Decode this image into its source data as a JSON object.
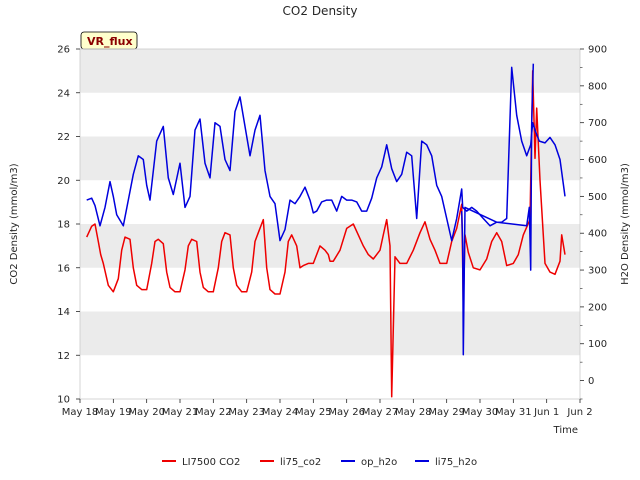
{
  "chart_data": {
    "type": "line",
    "title": "CO2 Density",
    "badge": "VR_flux",
    "xlabel": "Time",
    "ylabel_left": "CO2 Density (mmol/m3)",
    "ylabel_right": "H2O Density (mmol/m3)",
    "ylim_left": [
      10,
      26
    ],
    "ylim_right": [
      -50,
      900
    ],
    "xlim": [
      "May 18",
      "Jun 2"
    ],
    "x_ticks": [
      "May 18",
      "May 19",
      "May 20",
      "May 21",
      "May 22",
      "May 23",
      "May 24",
      "May 25",
      "May 26",
      "May 27",
      "May 28",
      "May 29",
      "May 30",
      "May 31",
      "Jun 1",
      "Jun 2"
    ],
    "y_ticks_left": [
      "10",
      "12",
      "14",
      "16",
      "18",
      "20",
      "22",
      "24",
      "26"
    ],
    "y_ticks_right": [
      "0",
      "100",
      "200",
      "300",
      "400",
      "500",
      "600",
      "700",
      "800",
      "900"
    ],
    "grid": "horizontal bands",
    "legend_position": "bottom-center",
    "colors": {
      "co2": "#ee0000",
      "h2o": "#0000dd",
      "band": "#ebebeb"
    },
    "series": [
      {
        "name": "LI7500 CO2",
        "axis": "left",
        "color": "#ee0000",
        "x": [],
        "y": []
      },
      {
        "name": "li75_co2",
        "axis": "left",
        "color": "#ee0000",
        "x": [
          0.2,
          0.35,
          0.45,
          0.55,
          0.62,
          0.7,
          0.85,
          1.0,
          1.15,
          1.25,
          1.35,
          1.5,
          1.6,
          1.7,
          1.85,
          2.0,
          2.15,
          2.25,
          2.35,
          2.5,
          2.6,
          2.7,
          2.85,
          3.0,
          3.15,
          3.25,
          3.35,
          3.5,
          3.6,
          3.7,
          3.85,
          4.0,
          4.15,
          4.25,
          4.35,
          4.5,
          4.6,
          4.7,
          4.85,
          5.0,
          5.15,
          5.25,
          5.35,
          5.5,
          5.6,
          5.7,
          5.85,
          6.0,
          6.15,
          6.25,
          6.35,
          6.5,
          6.6,
          6.7,
          6.85,
          7.0,
          7.2,
          7.35,
          7.45,
          7.5,
          7.6,
          7.8,
          8.0,
          8.2,
          8.35,
          8.5,
          8.65,
          8.8,
          9.0,
          9.1,
          9.2,
          9.3,
          9.35,
          9.45,
          9.6,
          9.8,
          10.0,
          10.2,
          10.35,
          10.5,
          10.65,
          10.8,
          11.0,
          11.15,
          11.3,
          11.45,
          11.5,
          11.55,
          11.65,
          11.8,
          12.0,
          12.2,
          12.35,
          12.5,
          12.65,
          12.8,
          13.0,
          13.15,
          13.3,
          13.5,
          13.58,
          13.65,
          13.7,
          13.8,
          13.95,
          14.1,
          14.25,
          14.4,
          14.45,
          14.55
        ],
        "y": [
          17.4,
          17.9,
          18.0,
          17.2,
          16.6,
          16.2,
          15.2,
          14.9,
          15.5,
          16.8,
          17.4,
          17.3,
          16.0,
          15.2,
          15.0,
          15.0,
          16.2,
          17.2,
          17.3,
          17.1,
          15.8,
          15.1,
          14.9,
          14.9,
          15.9,
          17.0,
          17.3,
          17.2,
          15.8,
          15.1,
          14.9,
          14.9,
          16.0,
          17.2,
          17.6,
          17.5,
          16.0,
          15.2,
          14.9,
          14.9,
          15.8,
          17.2,
          17.6,
          18.2,
          16.0,
          15.0,
          14.8,
          14.8,
          15.8,
          17.2,
          17.5,
          17.0,
          16.0,
          16.1,
          16.2,
          16.2,
          17.0,
          16.8,
          16.6,
          16.3,
          16.3,
          16.8,
          17.8,
          18.0,
          17.5,
          17.0,
          16.6,
          16.4,
          16.8,
          17.5,
          18.2,
          17.0,
          10.1,
          16.5,
          16.2,
          16.2,
          16.8,
          17.6,
          18.1,
          17.3,
          16.8,
          16.2,
          16.2,
          17.2,
          17.8,
          18.9,
          14.3,
          17.5,
          16.7,
          16.0,
          15.9,
          16.4,
          17.2,
          17.6,
          17.2,
          16.1,
          16.2,
          16.6,
          17.5,
          18.2,
          25.0,
          21.0,
          23.3,
          20.0,
          16.2,
          15.8,
          15.7,
          16.3,
          17.5,
          16.6
        ]
      },
      {
        "name": "op_h2o",
        "axis": "right",
        "color": "#0000dd",
        "x": [
          0.2,
          0.35,
          0.45,
          0.6,
          0.75,
          0.9,
          1.0,
          1.1,
          1.3,
          1.45,
          1.6,
          1.75,
          1.9,
          2.0,
          2.1,
          2.3,
          2.5,
          2.65,
          2.8,
          3.0,
          3.15,
          3.3,
          3.45,
          3.6,
          3.75,
          3.9,
          4.05,
          4.2,
          4.35,
          4.5,
          4.65,
          4.8,
          4.95,
          5.1,
          5.25,
          5.4,
          5.55,
          5.7,
          5.85,
          6.0,
          6.15,
          6.3,
          6.45,
          6.6,
          6.75,
          6.9,
          7.0,
          7.1,
          7.25,
          7.4,
          7.55,
          7.7,
          7.85,
          8.0,
          8.15,
          8.3,
          8.45,
          8.6,
          8.75,
          8.9,
          9.05,
          9.2,
          9.35,
          9.5,
          9.65,
          9.8,
          9.95,
          10.1,
          10.25,
          10.4,
          10.55,
          10.7,
          10.85,
          11.0,
          11.15,
          11.3,
          11.45,
          11.48,
          11.6,
          11.75,
          11.9,
          12.1,
          12.3,
          12.5,
          12.65,
          12.8,
          12.95,
          13.1,
          13.25,
          13.4,
          13.52,
          13.58,
          13.65,
          13.78,
          13.95,
          14.1,
          14.25,
          14.4,
          14.55
        ],
        "y": [
          490,
          495,
          475,
          420,
          470,
          540,
          500,
          450,
          420,
          490,
          560,
          610,
          600,
          530,
          490,
          650,
          690,
          550,
          505,
          590,
          470,
          500,
          680,
          710,
          590,
          550,
          700,
          690,
          600,
          570,
          730,
          770,
          690,
          610,
          680,
          720,
          570,
          500,
          480,
          380,
          410,
          490,
          480,
          500,
          525,
          490,
          455,
          460,
          485,
          490,
          490,
          460,
          500,
          490,
          490,
          485,
          460,
          460,
          495,
          550,
          580,
          640,
          575,
          540,
          560,
          620,
          610,
          440,
          650,
          640,
          610,
          530,
          500,
          440,
          380,
          440,
          520,
          470,
          460,
          470,
          460,
          440,
          420,
          430,
          430,
          440,
          850,
          720,
          650,
          610,
          640,
          700,
          680,
          650,
          645,
          660,
          640,
          600,
          500
        ]
      },
      {
        "name": "li75_h2o",
        "axis": "right",
        "color": "#0000dd",
        "x": [
          11.45,
          11.48,
          11.5,
          11.55,
          12.5,
          13.4,
          13.48,
          13.52,
          13.55,
          13.6
        ],
        "y": [
          460,
          370,
          70,
          470,
          430,
          420,
          470,
          300,
          700,
          860
        ]
      }
    ]
  }
}
